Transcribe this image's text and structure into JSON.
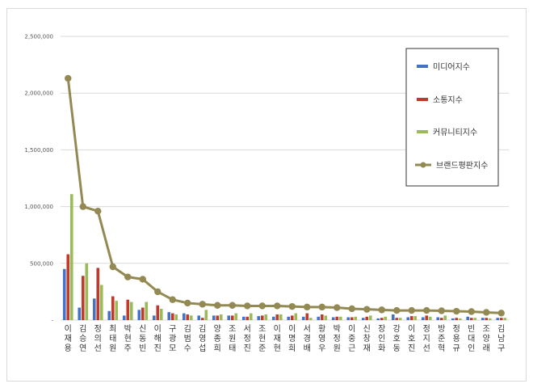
{
  "chart_data": {
    "type": "bar",
    "categories": [
      "이재용",
      "김승연",
      "정의선",
      "최태원",
      "박현주",
      "신동빈",
      "이해진",
      "구광모",
      "김범수",
      "김영섭",
      "양종희",
      "조원태",
      "서정진",
      "조현준",
      "이재현",
      "이명희",
      "서경배",
      "황영우",
      "박정원",
      "이중근",
      "신창재",
      "장인화",
      "강호동",
      "이호진",
      "정지선",
      "방준혁",
      "정용규",
      "빈대인",
      "조양래",
      "김남구"
    ],
    "series": [
      {
        "name": "미디어지수",
        "color": "#4472c4",
        "values": [
          450000,
          110000,
          190000,
          80000,
          40000,
          90000,
          40000,
          70000,
          60000,
          40000,
          40000,
          40000,
          30000,
          35000,
          30000,
          30000,
          30000,
          30000,
          25000,
          25000,
          20000,
          15000,
          50000,
          25000,
          25000,
          25000,
          15000,
          30000,
          20000,
          20000
        ]
      },
      {
        "name": "소통지수",
        "color": "#c0392b",
        "values": [
          580000,
          390000,
          460000,
          210000,
          180000,
          110000,
          130000,
          60000,
          50000,
          20000,
          40000,
          40000,
          30000,
          40000,
          50000,
          40000,
          60000,
          50000,
          30000,
          25000,
          30000,
          20000,
          20000,
          35000,
          40000,
          20000,
          20000,
          20000,
          20000,
          20000
        ]
      },
      {
        "name": "커뮤니티지수",
        "color": "#9bbb59",
        "values": [
          1110000,
          500000,
          310000,
          170000,
          160000,
          160000,
          100000,
          50000,
          40000,
          90000,
          50000,
          60000,
          60000,
          50000,
          50000,
          60000,
          20000,
          40000,
          30000,
          30000,
          40000,
          30000,
          20000,
          35000,
          30000,
          40000,
          15000,
          20000,
          15000,
          20000
        ]
      }
    ],
    "line": {
      "name": "브랜드평판지수",
      "color": "#938953",
      "values": [
        2130000,
        1000000,
        960000,
        470000,
        380000,
        360000,
        250000,
        180000,
        150000,
        140000,
        130000,
        130000,
        125000,
        125000,
        125000,
        120000,
        115000,
        115000,
        110000,
        100000,
        95000,
        90000,
        85000,
        85000,
        85000,
        82000,
        78000,
        75000,
        68000,
        62000
      ]
    },
    "ylim": [
      0,
      2500000
    ],
    "yticks": [
      "-",
      "500,000",
      "1,000,000",
      "1,500,000",
      "2,000,000",
      "2,500,000"
    ],
    "grid": true,
    "legend": "right"
  }
}
